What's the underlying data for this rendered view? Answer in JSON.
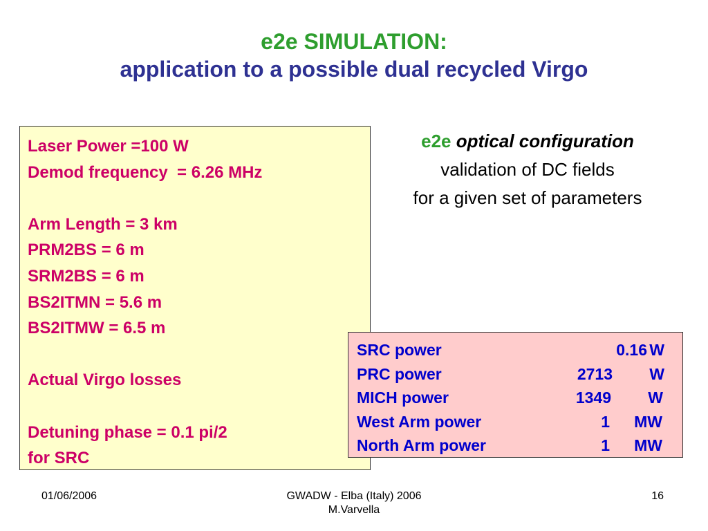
{
  "title": {
    "line1": "e2e SIMULATION:",
    "line2": "application to a possible dual recycled Virgo"
  },
  "parameters": {
    "laser_power": "Laser Power =100 W",
    "demod_frequency": "Demod frequency  = 6.26 MHz",
    "arm_length": "Arm Length = 3 km",
    "prm2bs": "PRM2BS = 6 m",
    "srm2bs": "SRM2BS = 6 m",
    "bs2itmn": "BS2ITMN = 5.6 m",
    "bs2itmw": "BS2ITMW = 6.5 m",
    "losses": "Actual Virgo losses",
    "detuning_line1": "Detuning phase = 0.1 pi/2",
    "detuning_line2": "for SRC"
  },
  "config": {
    "e2e": "e2e",
    "optical": "optical configuration",
    "line2": "validation of DC fields",
    "line3": "for a given set of parameters"
  },
  "powers": [
    {
      "label": "SRC power",
      "value": "0.16",
      "unit": "W"
    },
    {
      "label": "PRC power",
      "value": "2713",
      "unit": "W"
    },
    {
      "label": "MICH power",
      "value": "1349",
      "unit": "W"
    },
    {
      "label": "West Arm power",
      "value": "1",
      "unit": "MW"
    },
    {
      "label": "North Arm power",
      "value": "1",
      "unit": "MW"
    }
  ],
  "footer": {
    "date": "01/06/2006",
    "conference": "GWADW - Elba (Italy) 2006",
    "author": "M.Varvella",
    "page_number": "16"
  },
  "colors": {
    "title_green": "#2e9e2e",
    "title_blue": "#2e3192",
    "params_text": "#cc0066",
    "params_bg": "#ffffcc",
    "power_text": "#0000cc",
    "power_bg": "#ffcccc"
  }
}
